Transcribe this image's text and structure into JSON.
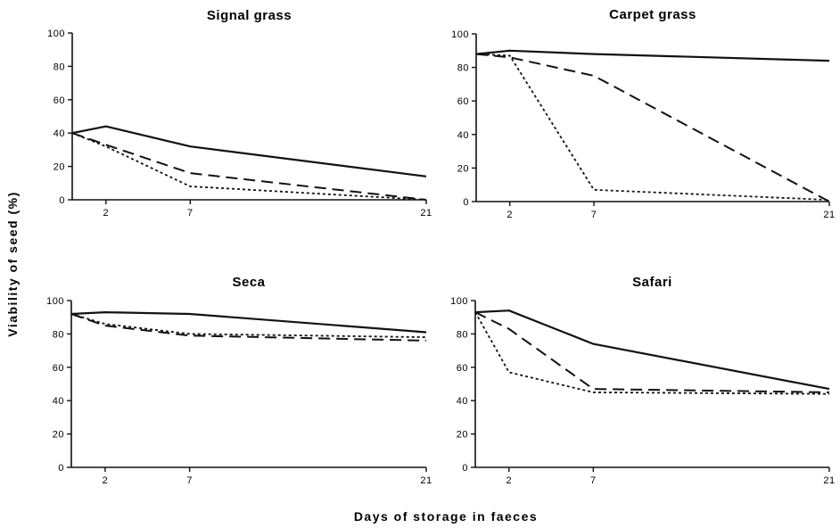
{
  "figure": {
    "xlabel": "Days of storage in faeces",
    "ylabel": "Viability of seed (%)"
  },
  "chart_data": [
    {
      "type": "line",
      "title": "Signal grass",
      "x": [
        0,
        2,
        7,
        21
      ],
      "x_ticks": [
        2,
        7,
        21
      ],
      "ylim": [
        0,
        100
      ],
      "y_ticks": [
        0,
        20,
        40,
        60,
        80,
        100
      ],
      "grid": false,
      "series": [
        {
          "style": "solid",
          "values": [
            40,
            44,
            32,
            14
          ]
        },
        {
          "style": "dashed",
          "values": [
            40,
            33,
            16,
            0
          ]
        },
        {
          "style": "dotted",
          "values": [
            40,
            32,
            8,
            0
          ]
        }
      ]
    },
    {
      "type": "line",
      "title": "Carpet grass",
      "x": [
        0,
        2,
        7,
        21
      ],
      "x_ticks": [
        2,
        7,
        21
      ],
      "ylim": [
        0,
        100
      ],
      "y_ticks": [
        0,
        20,
        40,
        60,
        80,
        100
      ],
      "grid": false,
      "series": [
        {
          "style": "solid",
          "values": [
            88,
            90,
            88,
            84
          ]
        },
        {
          "style": "dashed",
          "values": [
            88,
            86,
            75,
            0
          ]
        },
        {
          "style": "dotted",
          "values": [
            88,
            87,
            7,
            1
          ]
        }
      ]
    },
    {
      "type": "line",
      "title": "Seca",
      "x": [
        0,
        2,
        7,
        21
      ],
      "x_ticks": [
        2,
        7,
        21
      ],
      "ylim": [
        0,
        100
      ],
      "y_ticks": [
        0,
        20,
        40,
        60,
        80,
        100
      ],
      "grid": false,
      "series": [
        {
          "style": "solid",
          "values": [
            92,
            93,
            92,
            81
          ]
        },
        {
          "style": "dashed",
          "values": [
            92,
            85,
            79,
            76
          ]
        },
        {
          "style": "dotted",
          "values": [
            92,
            86,
            80,
            78
          ]
        }
      ]
    },
    {
      "type": "line",
      "title": "Safari",
      "x": [
        0,
        2,
        7,
        21
      ],
      "x_ticks": [
        2,
        7,
        21
      ],
      "ylim": [
        0,
        100
      ],
      "y_ticks": [
        0,
        20,
        40,
        60,
        80,
        100
      ],
      "grid": false,
      "series": [
        {
          "style": "solid",
          "values": [
            93,
            94,
            74,
            47
          ]
        },
        {
          "style": "dashed",
          "values": [
            93,
            83,
            47,
            45
          ]
        },
        {
          "style": "dotted",
          "values": [
            93,
            57,
            45,
            44
          ]
        }
      ]
    }
  ]
}
